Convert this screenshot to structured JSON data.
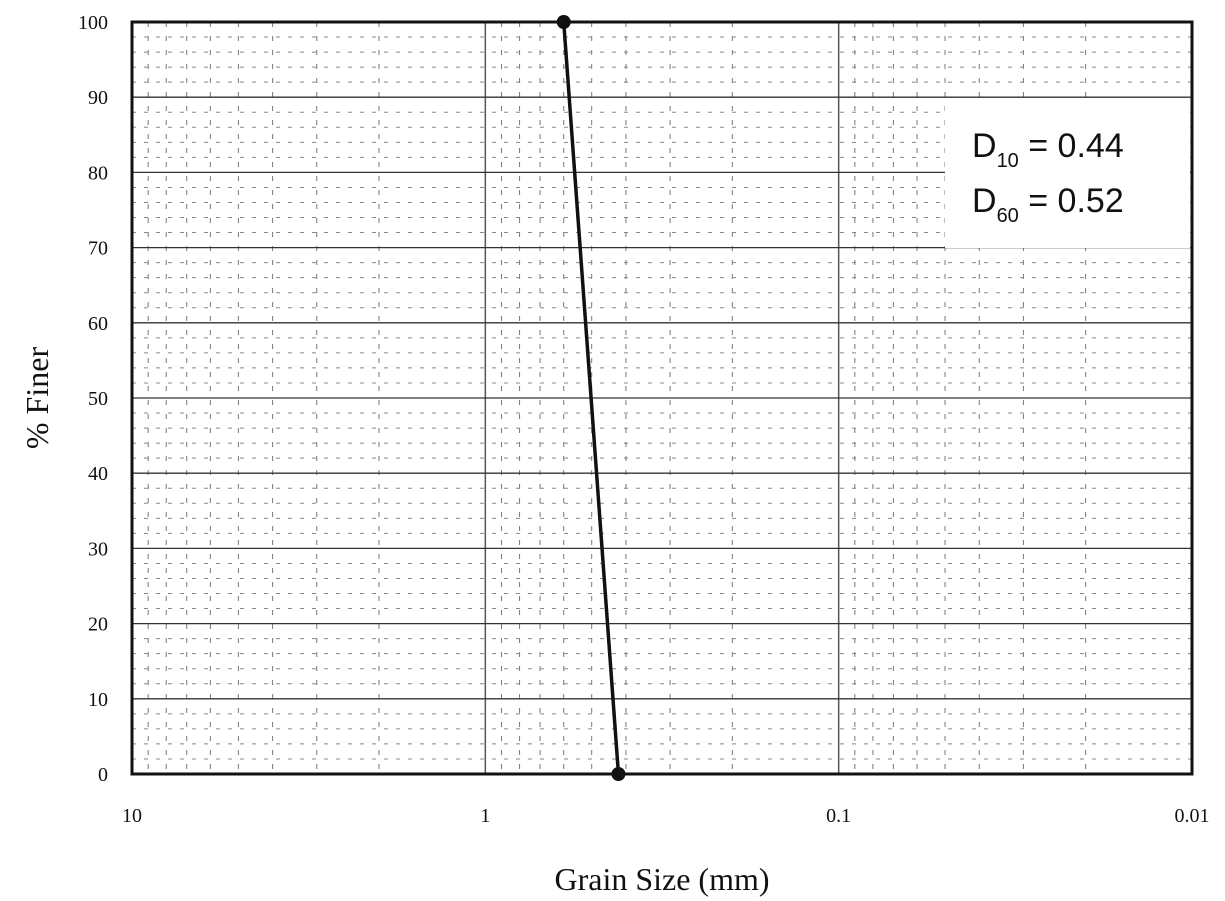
{
  "chart_data": {
    "type": "line",
    "title": "",
    "xlabel": "Grain Size (mm)",
    "ylabel": "% Finer",
    "x_scale": "log",
    "x_reversed": true,
    "xlim": [
      10,
      0.01
    ],
    "ylim": [
      0,
      100
    ],
    "x_ticks": [
      {
        "value": 10,
        "label": "10"
      },
      {
        "value": 1,
        "label": "1"
      },
      {
        "value": 0.1,
        "label": "0.1"
      },
      {
        "value": 0.01,
        "label": "0.01"
      }
    ],
    "y_ticks": [
      {
        "value": 0,
        "label": "0"
      },
      {
        "value": 10,
        "label": "10"
      },
      {
        "value": 20,
        "label": "20"
      },
      {
        "value": 30,
        "label": "30"
      },
      {
        "value": 40,
        "label": "40"
      },
      {
        "value": 50,
        "label": "50"
      },
      {
        "value": 60,
        "label": "60"
      },
      {
        "value": 70,
        "label": "70"
      },
      {
        "value": 80,
        "label": "80"
      },
      {
        "value": 90,
        "label": "90"
      },
      {
        "value": 100,
        "label": "100"
      }
    ],
    "grid": true,
    "series": [
      {
        "points": [
          {
            "x": 0.6,
            "y": 100
          },
          {
            "x": 0.42,
            "y": 0
          }
        ]
      }
    ],
    "annotations": [
      {
        "symbol": "D",
        "subscript": "10",
        "text": " = 0.44"
      },
      {
        "symbol": "D",
        "subscript": "60",
        "text": " = 0.52"
      }
    ],
    "annotation_position": "top-right"
  }
}
